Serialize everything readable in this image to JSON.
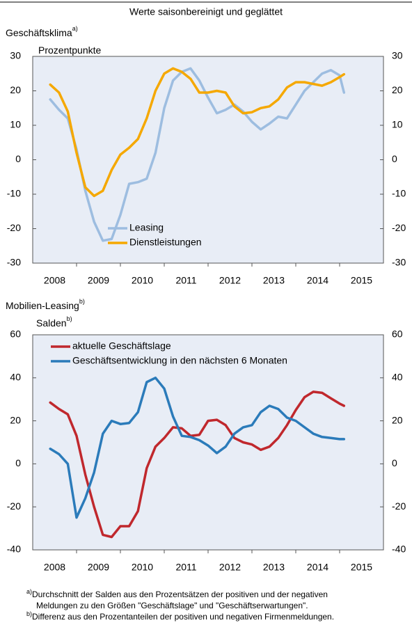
{
  "title": "Werte saisonbereinigt und geglättet",
  "chart_data": [
    {
      "type": "line",
      "title": "Geschäftsklima",
      "title_note": "a)",
      "subtitle": "Prozentpunkte",
      "x": [
        2008.4,
        2008.6,
        2008.8,
        2009.0,
        2009.2,
        2009.4,
        2009.6,
        2009.8,
        2010.0,
        2010.2,
        2010.4,
        2010.6,
        2010.8,
        2011.0,
        2011.2,
        2011.4,
        2011.6,
        2011.8,
        2012.0,
        2012.2,
        2012.4,
        2012.6,
        2012.8,
        2013.0,
        2013.2,
        2013.4,
        2013.6,
        2013.8,
        2014.0,
        2014.2,
        2014.4,
        2014.6,
        2014.8,
        2015.0,
        2015.1
      ],
      "series": [
        {
          "name": "Leasing",
          "color": "#9dbde0",
          "values": [
            17.5,
            14.5,
            12,
            3,
            -9,
            -18,
            -23.5,
            -23,
            -16,
            -7,
            -6.5,
            -5.5,
            2,
            15,
            23,
            25.5,
            26.5,
            23,
            18,
            13.5,
            14.5,
            16,
            14,
            11,
            8.8,
            10.5,
            12.5,
            12,
            16,
            20,
            22.5,
            25,
            26,
            24.5,
            19.5
          ]
        },
        {
          "name": "Dienstleistungen",
          "color": "#f5a800",
          "values": [
            21.8,
            19.5,
            14,
            2,
            -8,
            -10.5,
            -9,
            -3,
            1.5,
            3.5,
            6,
            12,
            20,
            25,
            26.5,
            25.5,
            23.5,
            19.5,
            19.5,
            20,
            19.5,
            15.5,
            13.5,
            13.8,
            15,
            15.5,
            17.5,
            21,
            22.5,
            22.5,
            22,
            21.5,
            22.5,
            24,
            24.8
          ]
        }
      ],
      "xlim": [
        2008,
        2016
      ],
      "xticks": [
        2008,
        2009,
        2010,
        2011,
        2012,
        2013,
        2014,
        2015
      ],
      "ylim": [
        -30,
        30
      ],
      "yticks": [
        -30,
        -20,
        -10,
        0,
        10,
        20,
        30
      ],
      "legend": "lower left"
    },
    {
      "type": "line",
      "title": "Mobilien-Leasing",
      "title_note": "b)",
      "subtitle": "Salden",
      "x": [
        2008.4,
        2008.6,
        2008.8,
        2009.0,
        2009.2,
        2009.4,
        2009.6,
        2009.8,
        2010.0,
        2010.2,
        2010.4,
        2010.6,
        2010.8,
        2011.0,
        2011.2,
        2011.4,
        2011.6,
        2011.8,
        2012.0,
        2012.2,
        2012.4,
        2012.6,
        2012.8,
        2013.0,
        2013.2,
        2013.4,
        2013.6,
        2013.8,
        2014.0,
        2014.2,
        2014.4,
        2014.6,
        2014.8,
        2015.0,
        2015.1
      ],
      "series": [
        {
          "name": "aktuelle Geschäftslage",
          "color": "#c0282d",
          "values": [
            28.5,
            25.5,
            23,
            13,
            -5,
            -20,
            -33,
            -34,
            -29,
            -29,
            -22,
            -2,
            8,
            12,
            17,
            16.5,
            13,
            13.5,
            20,
            20.5,
            18,
            12,
            10,
            9,
            6.5,
            8,
            12,
            18,
            25,
            31,
            33.5,
            33,
            30.5,
            28,
            27
          ]
        },
        {
          "name": "Geschäftsentwicklung in den nächsten 6 Monaten",
          "color": "#2b7bba",
          "values": [
            7,
            4.5,
            0,
            -25,
            -16,
            -4,
            14,
            20,
            18.5,
            19,
            24,
            38,
            40,
            35,
            22,
            13,
            12.5,
            11,
            8.5,
            5,
            8,
            14,
            17,
            18,
            24,
            27,
            25.5,
            21.5,
            20,
            17,
            14,
            12.5,
            12,
            11.5,
            11.5
          ]
        }
      ],
      "xlim": [
        2008,
        2016
      ],
      "xticks": [
        2008,
        2009,
        2010,
        2011,
        2012,
        2013,
        2014,
        2015
      ],
      "ylim": [
        -40,
        60
      ],
      "yticks": [
        -40,
        -20,
        0,
        20,
        40,
        60
      ],
      "legend": "upper left"
    }
  ],
  "footnotes": [
    {
      "marker": "a)",
      "lines": [
        "Durchschnitt der Salden aus den Prozentsätzen der positiven und der negativen",
        "Meldungen zu den Größen  \"Geschäftslage\"  und \"Geschäftserwartungen\"."
      ]
    },
    {
      "marker": "b)",
      "lines": [
        "Differenz aus den Prozentanteilen der positiven und negativen Firmenmeldungen."
      ]
    }
  ]
}
